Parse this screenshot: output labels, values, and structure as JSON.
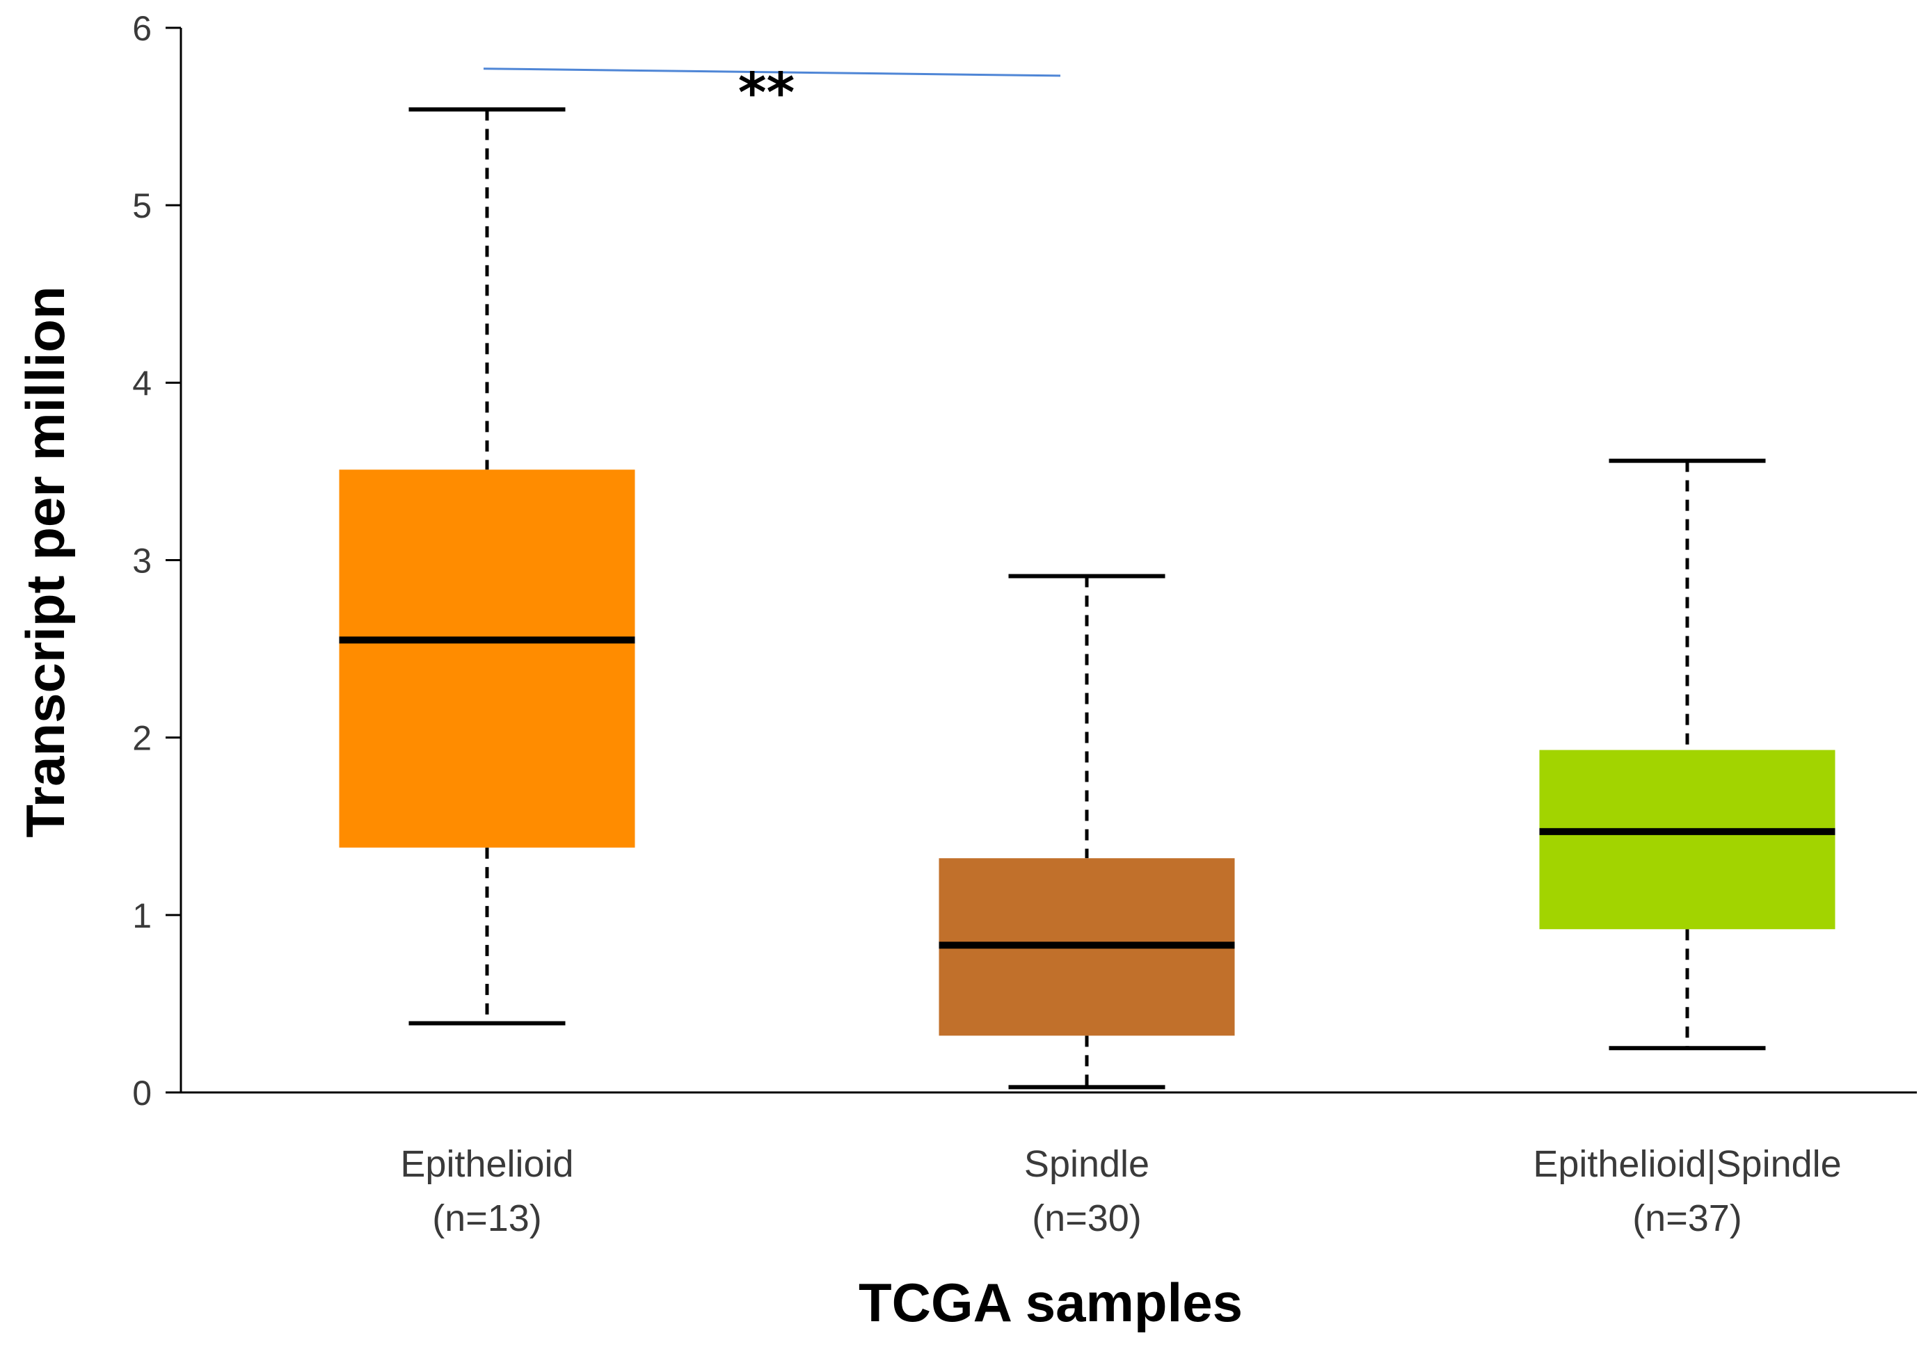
{
  "chart_data": {
    "type": "box",
    "title": "",
    "xlabel": "TCGA samples",
    "ylabel": "Transcript per million",
    "ylim": [
      0,
      6
    ],
    "yticks": [
      "0",
      "1",
      "2",
      "3",
      "4",
      "5",
      "6"
    ],
    "grid": false,
    "categories": [
      {
        "name": "Epithelioid",
        "n_label": "(n=13)",
        "color": "#FF8C00",
        "min": 0.39,
        "q1": 1.38,
        "median": 2.55,
        "q3": 3.51,
        "max": 5.54
      },
      {
        "name": "Spindle",
        "n_label": "(n=30)",
        "color": "#C1702B",
        "min": 0.03,
        "q1": 0.32,
        "median": 0.83,
        "q3": 1.32,
        "max": 2.91
      },
      {
        "name": "Epithelioid|Spindle",
        "n_label": "(n=37)",
        "color": "#A2D400",
        "min": 0.25,
        "q1": 0.92,
        "median": 1.47,
        "q3": 1.93,
        "max": 3.56
      }
    ],
    "significance": [
      {
        "from": 0,
        "to": 1,
        "label": "**",
        "color": "#4F86D6",
        "y_start": 5.77,
        "y_end": 5.73
      }
    ]
  }
}
